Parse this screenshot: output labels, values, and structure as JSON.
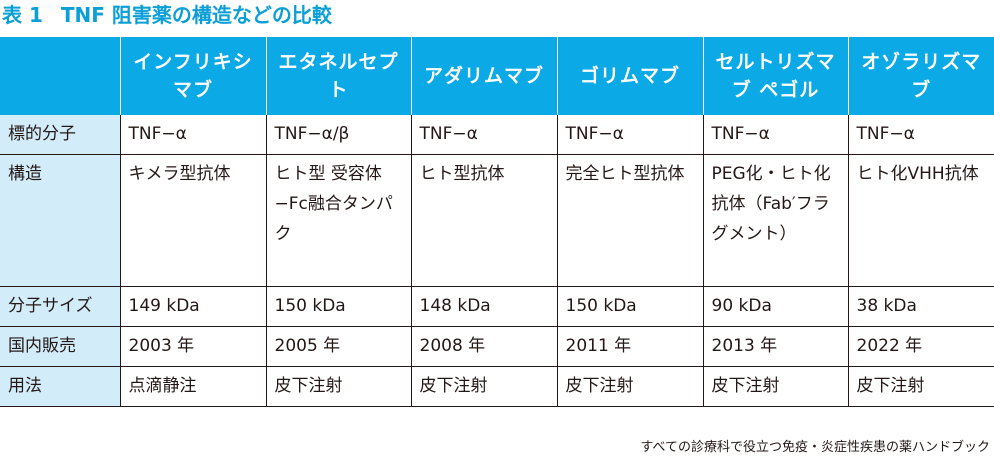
{
  "title": {
    "number": "表 1",
    "text": "TNF 阻害薬の構造などの比較"
  },
  "table": {
    "headers": [
      "",
      "インフリキシマブ",
      "エタネルセプト",
      "アダリムマブ",
      "ゴリムマブ",
      "セルトリズマブ ペゴル",
      "オゾラリズマブ"
    ],
    "rows": [
      {
        "label": "標的分子",
        "cells": [
          "TNF−α",
          "TNF−α/β",
          "TNF−α",
          "TNF−α",
          "TNF−α",
          "TNF−α"
        ]
      },
      {
        "label": "構造",
        "cells": [
          "キメラ型抗体",
          "ヒト型 受容体−Fc融合タンパク",
          "ヒト型抗体",
          "完全ヒト型抗体",
          "PEG化・ヒト化抗体（Fab′フラグメント）",
          "ヒト化VHH抗体"
        ]
      },
      {
        "label": "分子サイズ",
        "cells": [
          "149 kDa",
          "150 kDa",
          "148 kDa",
          "150 kDa",
          "90 kDa",
          "38 kDa"
        ]
      },
      {
        "label": "国内販売",
        "cells": [
          "2003 年",
          "2005 年",
          "2008 年",
          "2011 年",
          "2013 年",
          "2022 年"
        ]
      },
      {
        "label": "用法",
        "cells": [
          "点滴静注",
          "皮下注射",
          "皮下注射",
          "皮下注射",
          "皮下注射",
          "皮下注射"
        ]
      }
    ]
  },
  "footer": "すべての診療科で役立つ免疫・炎症性疾患の薬ハンドブック"
}
